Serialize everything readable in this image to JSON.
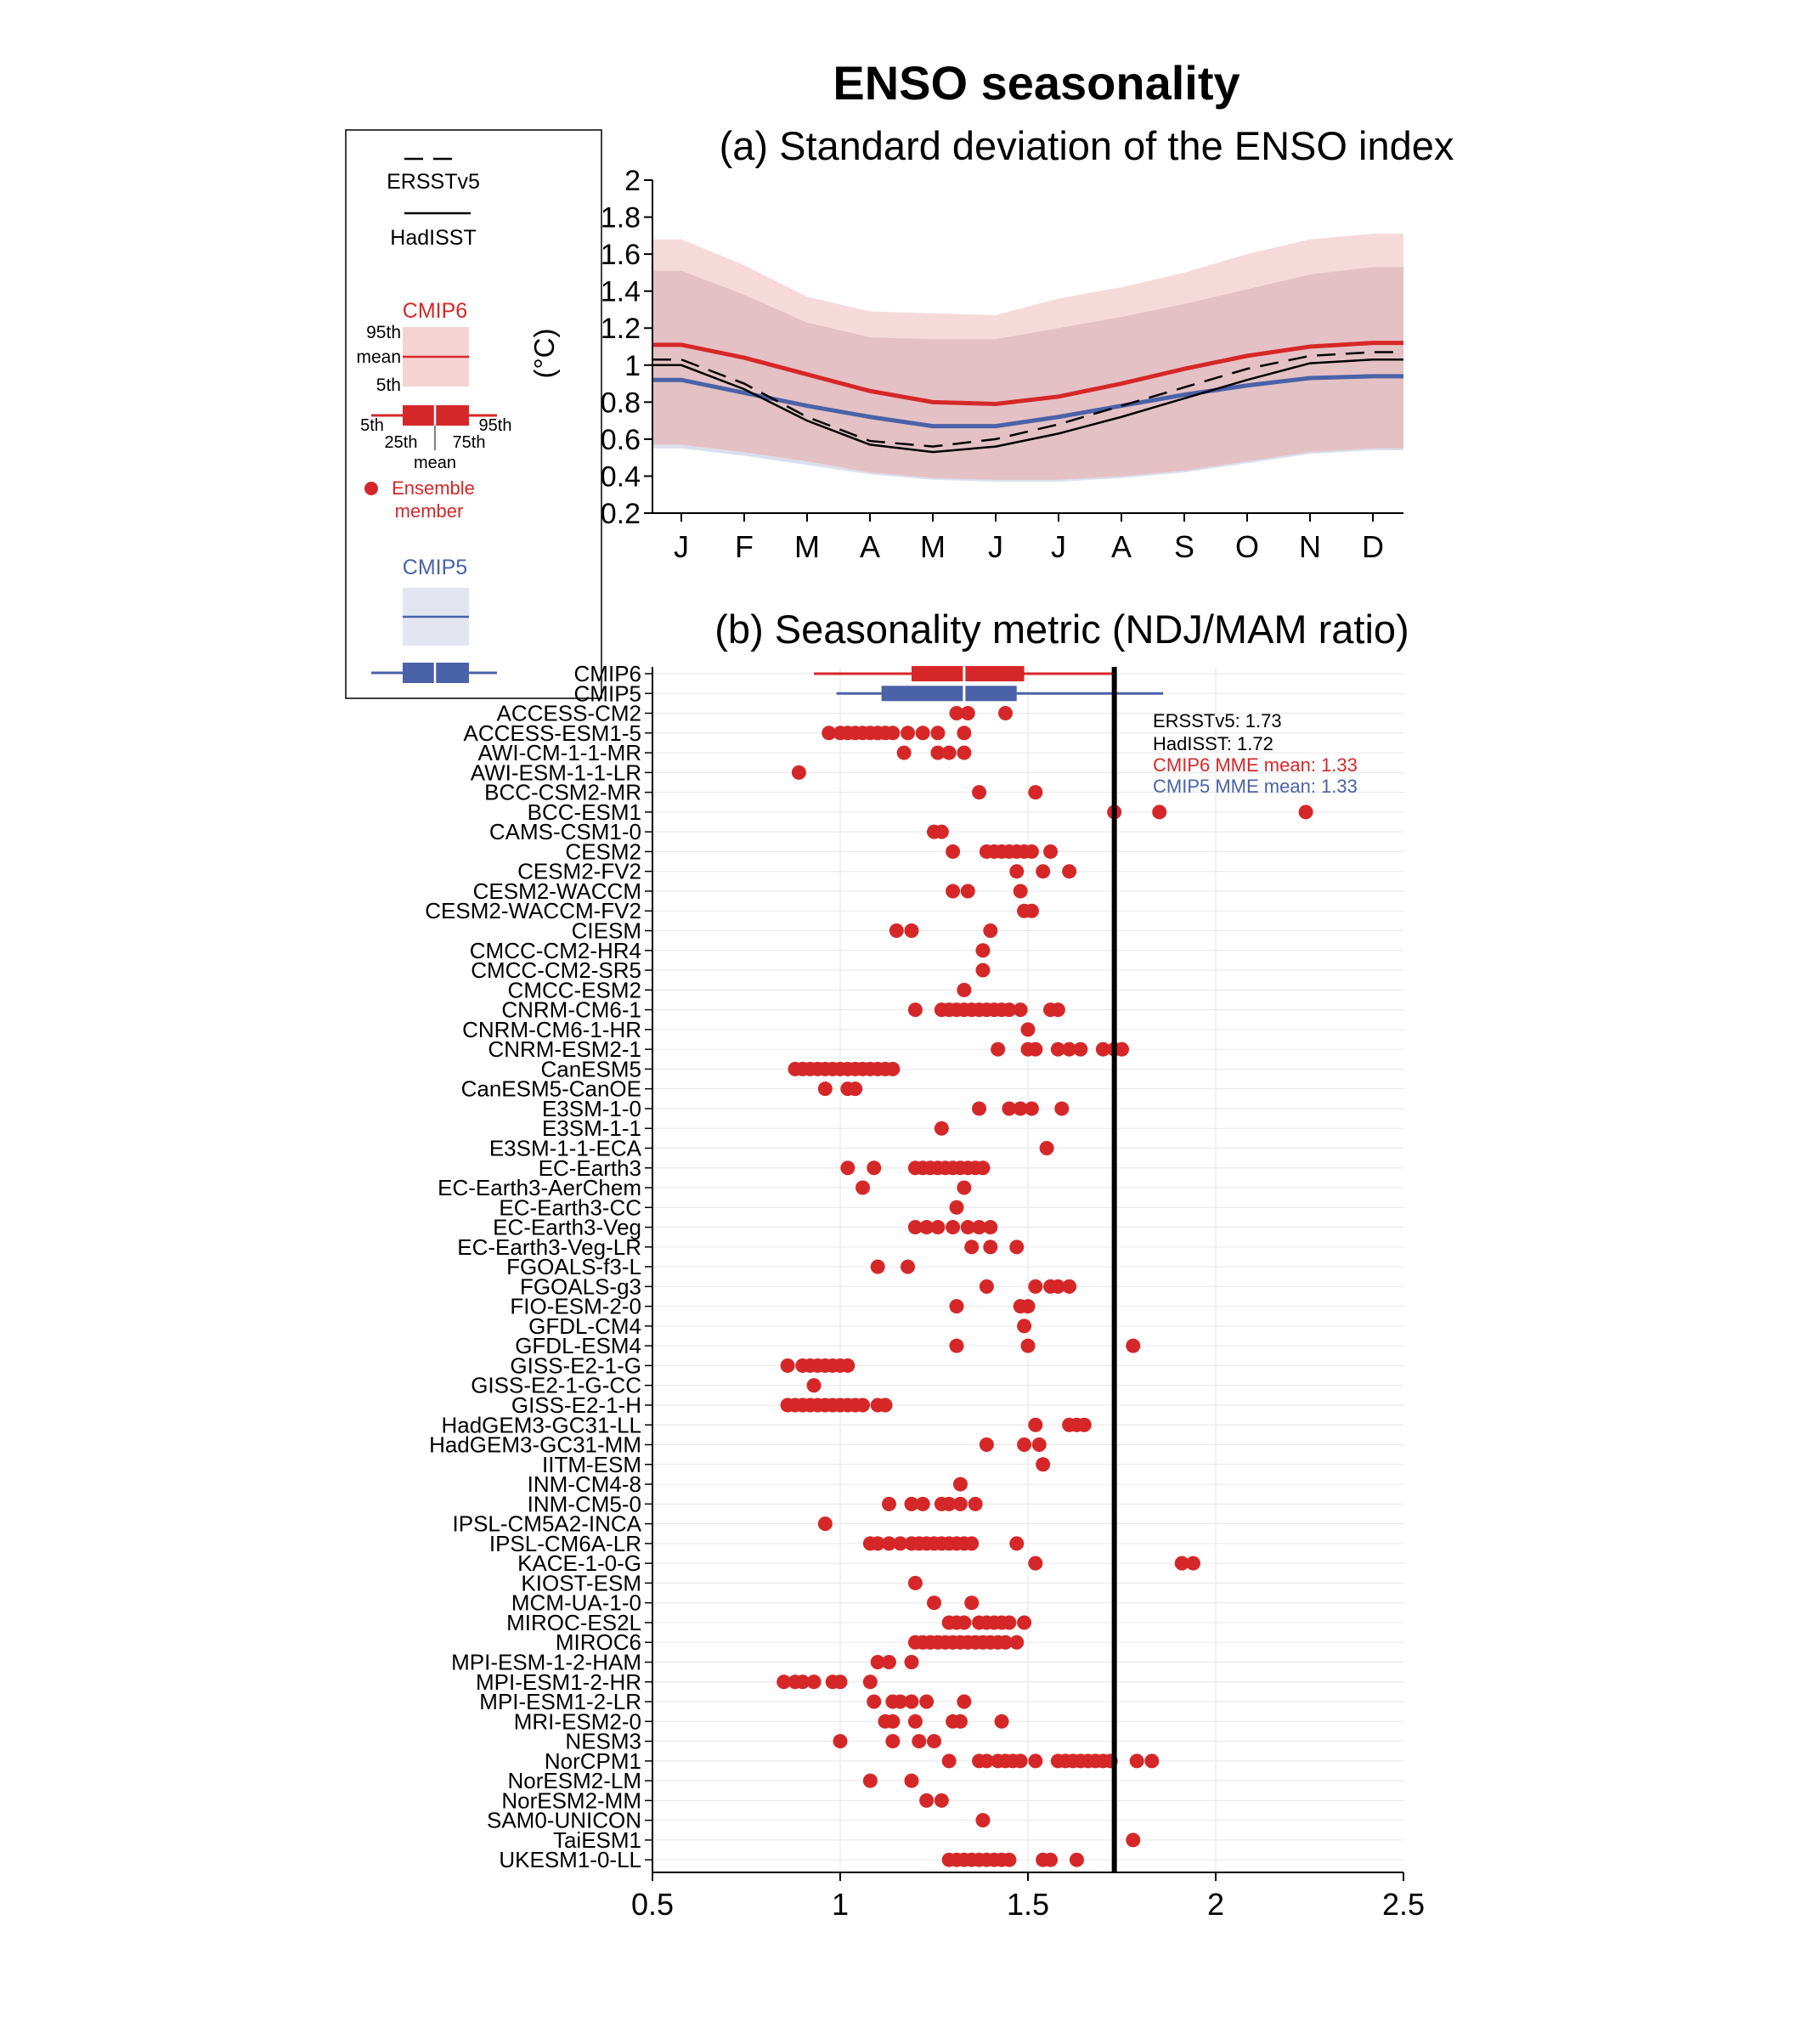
{
  "figure": {
    "title": "ENSO seasonality"
  },
  "colors": {
    "cmip6": "#d62728",
    "cmip6_band_outer": "#f5d3d3",
    "cmip6_band_inner": "#d9b0b4",
    "cmip5": "#4a62a8",
    "cmip5_band": "#d7dcea",
    "obs": "#000000",
    "grid": "#e6e6e6"
  },
  "legend": {
    "ersst_label": "ERSSTv5",
    "hadisst_label": "HadISST",
    "cmip6_label": "CMIP6",
    "p95_label": "95th",
    "mean_label": "mean",
    "p5_label": "5th",
    "box_5th": "5th",
    "box_95th": "95th",
    "box_25th": "25th",
    "box_75th": "75th",
    "box_mean": "mean",
    "member_label_1": "Ensemble",
    "member_label_2": "member",
    "cmip5_label": "CMIP5"
  },
  "chart_data": [
    {
      "type": "line",
      "title": "(a) Standard deviation of the ENSO index",
      "ylabel": "(°C)",
      "categories": [
        "J",
        "F",
        "M",
        "A",
        "M",
        "J",
        "J",
        "A",
        "S",
        "O",
        "N",
        "D"
      ],
      "ylim": [
        0.2,
        2.0
      ],
      "yticks": [
        "0.2",
        "0.4",
        "0.6",
        "0.8",
        "1",
        "1.2",
        "1.4",
        "1.6",
        "1.8",
        "2"
      ],
      "series": [
        {
          "name": "ERSSTv5",
          "style": "dashed",
          "values": [
            1.03,
            0.9,
            0.72,
            0.59,
            0.56,
            0.6,
            0.68,
            0.78,
            0.88,
            0.98,
            1.05,
            1.07
          ]
        },
        {
          "name": "HadISST",
          "style": "solid",
          "values": [
            1.0,
            0.87,
            0.7,
            0.57,
            0.53,
            0.56,
            0.63,
            0.72,
            0.82,
            0.92,
            1.01,
            1.03
          ]
        },
        {
          "name": "CMIP6",
          "style": "mean",
          "values": [
            1.11,
            1.04,
            0.95,
            0.86,
            0.8,
            0.79,
            0.83,
            0.9,
            0.98,
            1.05,
            1.1,
            1.12
          ]
        },
        {
          "name": "CMIP5",
          "style": "mean",
          "values": [
            0.92,
            0.85,
            0.78,
            0.72,
            0.67,
            0.67,
            0.72,
            0.78,
            0.84,
            0.89,
            0.93,
            0.94
          ]
        }
      ],
      "bands": {
        "cmip6_p5": [
          0.57,
          0.53,
          0.48,
          0.42,
          0.39,
          0.38,
          0.38,
          0.4,
          0.43,
          0.48,
          0.53,
          0.55
        ],
        "cmip6_p95": [
          1.68,
          1.54,
          1.37,
          1.29,
          1.28,
          1.27,
          1.36,
          1.42,
          1.5,
          1.6,
          1.68,
          1.71
        ],
        "cmip5_p5": [
          0.55,
          0.51,
          0.46,
          0.41,
          0.38,
          0.37,
          0.37,
          0.39,
          0.42,
          0.47,
          0.52,
          0.54
        ],
        "cmip5_p95": [
          1.51,
          1.38,
          1.23,
          1.15,
          1.14,
          1.14,
          1.2,
          1.26,
          1.33,
          1.41,
          1.49,
          1.53
        ]
      }
    },
    {
      "type": "scatter",
      "title": "(b) Seasonality metric (NDJ/MAM ratio)",
      "xlim": [
        0.5,
        2.5
      ],
      "xticks": [
        "0.5",
        "1",
        "1.5",
        "2",
        "2.5"
      ],
      "reference_line": 1.73,
      "annotations": [
        "ERSSTv5: 1.73",
        "HadISST: 1.72",
        "CMIP6 MME mean: 1.33",
        "CMIP5 MME mean: 1.33"
      ],
      "boxes": [
        {
          "name": "CMIP6",
          "p5": 0.93,
          "p25": 1.19,
          "mean": 1.33,
          "p75": 1.49,
          "p95": 1.73
        },
        {
          "name": "CMIP5",
          "p5": 0.99,
          "p25": 1.11,
          "mean": 1.33,
          "p75": 1.47,
          "p95": 1.86
        }
      ],
      "models": [
        {
          "name": "ACCESS-CM2",
          "values": [
            1.31,
            1.34,
            1.44
          ]
        },
        {
          "name": "ACCESS-ESM1-5",
          "values": [
            0.97,
            1.0,
            1.02,
            1.04,
            1.06,
            1.08,
            1.1,
            1.12,
            1.14,
            1.18,
            1.22,
            1.26,
            1.33
          ]
        },
        {
          "name": "AWI-CM-1-1-MR",
          "values": [
            1.17,
            1.26,
            1.29,
            1.33
          ]
        },
        {
          "name": "AWI-ESM-1-1-LR",
          "values": [
            0.89
          ]
        },
        {
          "name": "BCC-CSM2-MR",
          "values": [
            1.37,
            1.52
          ]
        },
        {
          "name": "BCC-ESM1",
          "values": [
            1.73,
            1.85,
            2.24
          ]
        },
        {
          "name": "CAMS-CSM1-0",
          "values": [
            1.25,
            1.27
          ]
        },
        {
          "name": "CESM2",
          "values": [
            1.3,
            1.39,
            1.41,
            1.43,
            1.45,
            1.47,
            1.49,
            1.51,
            1.56
          ]
        },
        {
          "name": "CESM2-FV2",
          "values": [
            1.47,
            1.54,
            1.61
          ]
        },
        {
          "name": "CESM2-WACCM",
          "values": [
            1.3,
            1.34,
            1.48
          ]
        },
        {
          "name": "CESM2-WACCM-FV2",
          "values": [
            1.49,
            1.51
          ]
        },
        {
          "name": "CIESM",
          "values": [
            1.15,
            1.19,
            1.4
          ]
        },
        {
          "name": "CMCC-CM2-HR4",
          "values": [
            1.38
          ]
        },
        {
          "name": "CMCC-CM2-SR5",
          "values": [
            1.38
          ]
        },
        {
          "name": "CMCC-ESM2",
          "values": [
            1.33
          ]
        },
        {
          "name": "CNRM-CM6-1",
          "values": [
            1.2,
            1.27,
            1.29,
            1.31,
            1.33,
            1.35,
            1.37,
            1.39,
            1.41,
            1.43,
            1.45,
            1.48,
            1.56,
            1.58
          ]
        },
        {
          "name": "CNRM-CM6-1-HR",
          "values": [
            1.5
          ]
        },
        {
          "name": "CNRM-ESM2-1",
          "values": [
            1.42,
            1.5,
            1.52,
            1.58,
            1.61,
            1.64,
            1.7,
            1.73,
            1.75
          ]
        },
        {
          "name": "CanESM5",
          "values": [
            0.88,
            0.9,
            0.92,
            0.94,
            0.96,
            0.98,
            1.0,
            1.02,
            1.04,
            1.06,
            1.08,
            1.1,
            1.12,
            1.14
          ]
        },
        {
          "name": "CanESM5-CanOE",
          "values": [
            0.96,
            1.02,
            1.04
          ]
        },
        {
          "name": "E3SM-1-0",
          "values": [
            1.37,
            1.45,
            1.48,
            1.51,
            1.59
          ]
        },
        {
          "name": "E3SM-1-1",
          "values": [
            1.27
          ]
        },
        {
          "name": "E3SM-1-1-ECA",
          "values": [
            1.55
          ]
        },
        {
          "name": "EC-Earth3",
          "values": [
            1.02,
            1.09,
            1.2,
            1.22,
            1.24,
            1.26,
            1.28,
            1.3,
            1.32,
            1.34,
            1.36,
            1.38
          ]
        },
        {
          "name": "EC-Earth3-AerChem",
          "values": [
            1.06,
            1.33
          ]
        },
        {
          "name": "EC-Earth3-CC",
          "values": [
            1.31
          ]
        },
        {
          "name": "EC-Earth3-Veg",
          "values": [
            1.2,
            1.23,
            1.26,
            1.3,
            1.34,
            1.37,
            1.4
          ]
        },
        {
          "name": "EC-Earth3-Veg-LR",
          "values": [
            1.35,
            1.4,
            1.47
          ]
        },
        {
          "name": "FGOALS-f3-L",
          "values": [
            1.1,
            1.18
          ]
        },
        {
          "name": "FGOALS-g3",
          "values": [
            1.39,
            1.52,
            1.56,
            1.58,
            1.61
          ]
        },
        {
          "name": "FIO-ESM-2-0",
          "values": [
            1.31,
            1.48,
            1.5
          ]
        },
        {
          "name": "GFDL-CM4",
          "values": [
            1.49
          ]
        },
        {
          "name": "GFDL-ESM4",
          "values": [
            1.31,
            1.5,
            1.78
          ]
        },
        {
          "name": "GISS-E2-1-G",
          "values": [
            0.86,
            0.9,
            0.92,
            0.94,
            0.96,
            0.98,
            1.0,
            1.02
          ]
        },
        {
          "name": "GISS-E2-1-G-CC",
          "values": [
            0.93
          ]
        },
        {
          "name": "GISS-E2-1-H",
          "values": [
            0.86,
            0.88,
            0.9,
            0.92,
            0.94,
            0.96,
            0.98,
            1.0,
            1.02,
            1.04,
            1.06,
            1.1,
            1.12
          ]
        },
        {
          "name": "HadGEM3-GC31-LL",
          "values": [
            1.52,
            1.61,
            1.63,
            1.65
          ]
        },
        {
          "name": "HadGEM3-GC31-MM",
          "values": [
            1.39,
            1.49,
            1.53
          ]
        },
        {
          "name": "IITM-ESM",
          "values": [
            1.54
          ]
        },
        {
          "name": "INM-CM4-8",
          "values": [
            1.32
          ]
        },
        {
          "name": "INM-CM5-0",
          "values": [
            1.13,
            1.19,
            1.22,
            1.27,
            1.29,
            1.32,
            1.36
          ]
        },
        {
          "name": "IPSL-CM5A2-INCA",
          "values": [
            0.96
          ]
        },
        {
          "name": "IPSL-CM6A-LR",
          "values": [
            1.08,
            1.1,
            1.13,
            1.16,
            1.19,
            1.21,
            1.23,
            1.25,
            1.27,
            1.29,
            1.31,
            1.33,
            1.35,
            1.47
          ]
        },
        {
          "name": "KACE-1-0-G",
          "values": [
            1.52,
            1.91,
            1.94
          ]
        },
        {
          "name": "KIOST-ESM",
          "values": [
            1.2
          ]
        },
        {
          "name": "MCM-UA-1-0",
          "values": [
            1.25,
            1.35
          ]
        },
        {
          "name": "MIROC-ES2L",
          "values": [
            1.29,
            1.31,
            1.33,
            1.37,
            1.39,
            1.41,
            1.43,
            1.45,
            1.49
          ]
        },
        {
          "name": "MIROC6",
          "values": [
            1.2,
            1.22,
            1.24,
            1.26,
            1.28,
            1.3,
            1.32,
            1.34,
            1.36,
            1.38,
            1.4,
            1.42,
            1.44,
            1.47
          ]
        },
        {
          "name": "MPI-ESM-1-2-HAM",
          "values": [
            1.1,
            1.13,
            1.19
          ]
        },
        {
          "name": "MPI-ESM1-2-HR",
          "values": [
            0.85,
            0.88,
            0.9,
            0.93,
            0.98,
            1.0,
            1.08
          ]
        },
        {
          "name": "MPI-ESM1-2-LR",
          "values": [
            1.09,
            1.14,
            1.16,
            1.19,
            1.23,
            1.33
          ]
        },
        {
          "name": "MRI-ESM2-0",
          "values": [
            1.12,
            1.14,
            1.2,
            1.3,
            1.32,
            1.43
          ]
        },
        {
          "name": "NESM3",
          "values": [
            1.0,
            1.14,
            1.21,
            1.25
          ]
        },
        {
          "name": "NorCPM1",
          "values": [
            1.29,
            1.37,
            1.39,
            1.42,
            1.44,
            1.46,
            1.48,
            1.52,
            1.58,
            1.6,
            1.62,
            1.64,
            1.66,
            1.68,
            1.7,
            1.72,
            1.79,
            1.83
          ]
        },
        {
          "name": "NorESM2-LM",
          "values": [
            1.08,
            1.19
          ]
        },
        {
          "name": "NorESM2-MM",
          "values": [
            1.23,
            1.27
          ]
        },
        {
          "name": "SAM0-UNICON",
          "values": [
            1.38
          ]
        },
        {
          "name": "TaiESM1",
          "values": [
            1.78
          ]
        },
        {
          "name": "UKESM1-0-LL",
          "values": [
            1.29,
            1.31,
            1.33,
            1.35,
            1.37,
            1.39,
            1.41,
            1.43,
            1.45,
            1.54,
            1.56,
            1.63
          ]
        }
      ]
    }
  ]
}
